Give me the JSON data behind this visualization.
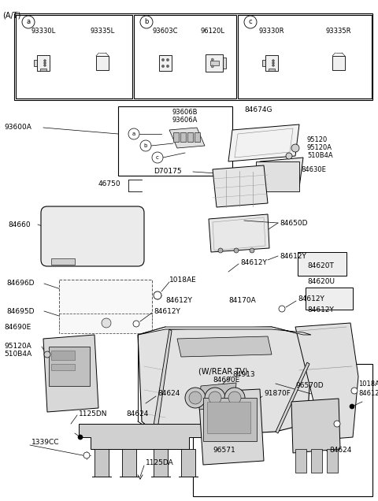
{
  "bg_color": "#ffffff",
  "text_color": "#000000",
  "fig_width": 4.8,
  "fig_height": 6.36,
  "dpi": 100,
  "header_label": "(A/T)",
  "section_labels": [
    "a",
    "b",
    "c"
  ],
  "part_numbers_top_a": [
    "93330L",
    "93335L"
  ],
  "part_numbers_top_b": [
    "93603C",
    "96120L"
  ],
  "part_numbers_top_c": [
    "93330R",
    "93335R"
  ],
  "inset_parts": [
    "93606B",
    "93606A"
  ],
  "inset_abc": [
    "a",
    "b",
    "c"
  ]
}
